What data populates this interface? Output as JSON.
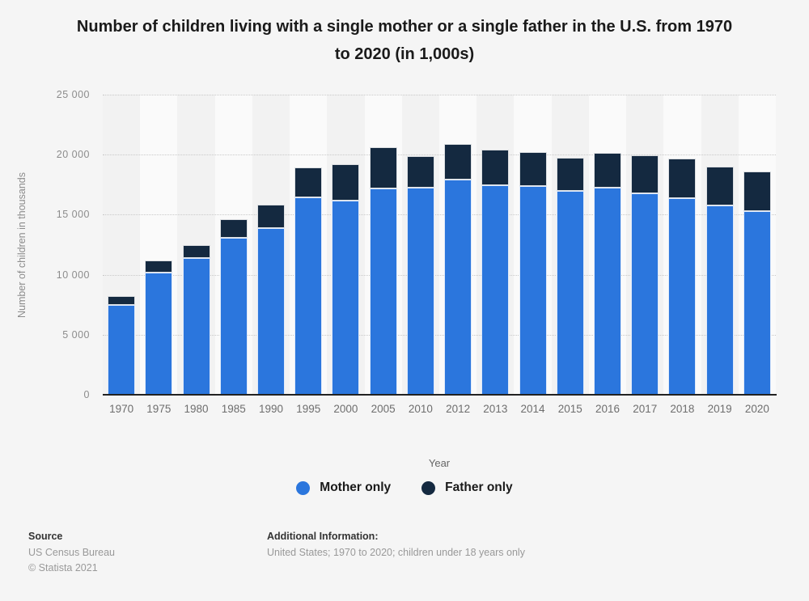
{
  "title": {
    "line1": "Number of children living with a single mother or a single father in the U.S. from 1970",
    "line2": "to 2020 (in 1,000s)"
  },
  "chart_data": {
    "type": "bar",
    "stacked": true,
    "title": "Number of children living with a single mother or a single father in the U.S. from 1970 to 2020 (in 1,000s)",
    "categories": [
      "1970",
      "1975",
      "1980",
      "1985",
      "1990",
      "1995",
      "2000",
      "2005",
      "2010",
      "2012",
      "2013",
      "2014",
      "2015",
      "2016",
      "2017",
      "2018",
      "2019",
      "2020"
    ],
    "series": [
      {
        "name": "Mother only",
        "color": "#2b76dd",
        "values": [
          7452,
          10183,
          11406,
          13081,
          13874,
          16477,
          16162,
          17161,
          17283,
          17957,
          17486,
          17393,
          16967,
          17236,
          16766,
          16398,
          15764,
          15314
        ]
      },
      {
        "name": "Father only",
        "color": "#142940",
        "values": [
          748,
          1014,
          1060,
          1554,
          1993,
          2461,
          3058,
          3458,
          2572,
          2905,
          2907,
          2803,
          2768,
          2939,
          3206,
          3252,
          3234,
          3318
        ]
      }
    ],
    "xlabel": "Year",
    "ylabel": "Number of children in thousands",
    "ylim": [
      0,
      25000
    ],
    "ytick_interval": 5000,
    "ytick_labels": [
      "0",
      "5 000",
      "10 000",
      "15 000",
      "20 000",
      "25 000"
    ],
    "grid": "horizontal-dotted",
    "legend_position": "bottom"
  },
  "footer": {
    "source_label": "Source",
    "source_name": "US Census Bureau",
    "copyright": "© Statista 2021",
    "additional_label": "Additional Information:",
    "additional_text": "United States; 1970 to 2020; children under 18 years only"
  },
  "colors": {
    "background": "#f5f5f5",
    "band_dark": "#f2f2f2",
    "band_light": "#fafafa",
    "gridline": "#c9c9c9",
    "axis_line": "#222222",
    "mother_only": "#2b76dd",
    "father_only": "#142940"
  }
}
